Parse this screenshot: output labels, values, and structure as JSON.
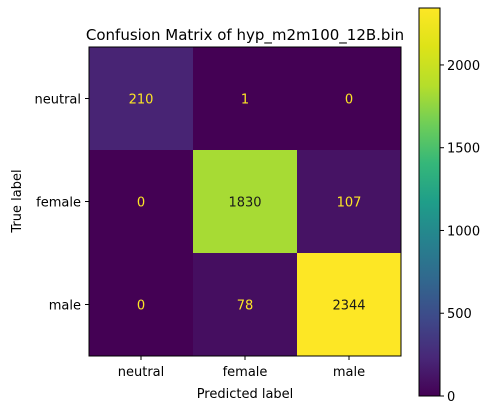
{
  "chart_data": {
    "type": "heatmap",
    "title": "Confusion Matrix of hyp_m2m100_12B.bin",
    "xlabel": "Predicted label",
    "ylabel": "True label",
    "x_categories": [
      "neutral",
      "female",
      "male"
    ],
    "y_categories": [
      "neutral",
      "female",
      "male"
    ],
    "values": [
      [
        210,
        1,
        0
      ],
      [
        0,
        1830,
        107
      ],
      [
        0,
        78,
        2344
      ]
    ],
    "colormap": "viridis",
    "vmin": 0,
    "vmax": 2344,
    "colorbar_ticks": [
      0,
      500,
      1000,
      1500,
      2000
    ],
    "colorbar_tick_labels": [
      "0",
      "500",
      "1000",
      "1500",
      "2000"
    ],
    "text_color_dark_cell": "#fde725",
    "text_color_light_cell": "#1a1a1a"
  }
}
